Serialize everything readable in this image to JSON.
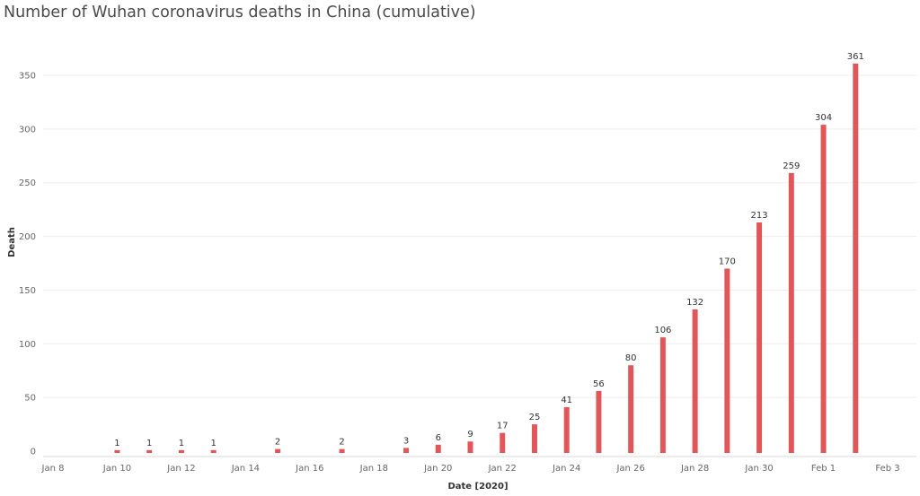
{
  "chart_data": {
    "type": "bar",
    "title": "Number of Wuhan coronavirus deaths in China (cumulative)",
    "xlabel": "Date [2020]",
    "ylabel": "Death",
    "bar_color": "#e15759",
    "gridlines": true,
    "ylim": [
      0,
      370
    ],
    "yticks": [
      0,
      50,
      100,
      150,
      200,
      250,
      300,
      350
    ],
    "xtick_labels": [
      "Jan 8",
      "Jan 10",
      "Jan 12",
      "Jan 14",
      "Jan 16",
      "Jan 18",
      "Jan 20",
      "Jan 22",
      "Jan 24",
      "Jan 26",
      "Jan 28",
      "Jan 30",
      "Feb 1",
      "Feb 3"
    ],
    "x_range": [
      "2020-01-08",
      "2020-02-03"
    ],
    "points": [
      {
        "date": "2020-01-10",
        "value": 1
      },
      {
        "date": "2020-01-11",
        "value": 1
      },
      {
        "date": "2020-01-12",
        "value": 1
      },
      {
        "date": "2020-01-13",
        "value": 1
      },
      {
        "date": "2020-01-15",
        "value": 2
      },
      {
        "date": "2020-01-17",
        "value": 2
      },
      {
        "date": "2020-01-19",
        "value": 3
      },
      {
        "date": "2020-01-20",
        "value": 6
      },
      {
        "date": "2020-01-21",
        "value": 9
      },
      {
        "date": "2020-01-22",
        "value": 17
      },
      {
        "date": "2020-01-23",
        "value": 25
      },
      {
        "date": "2020-01-24",
        "value": 41
      },
      {
        "date": "2020-01-25",
        "value": 56
      },
      {
        "date": "2020-01-26",
        "value": 80
      },
      {
        "date": "2020-01-27",
        "value": 106
      },
      {
        "date": "2020-01-28",
        "value": 132
      },
      {
        "date": "2020-01-29",
        "value": 170
      },
      {
        "date": "2020-01-30",
        "value": 213
      },
      {
        "date": "2020-01-31",
        "value": 259
      },
      {
        "date": "2020-02-01",
        "value": 304
      },
      {
        "date": "2020-02-02",
        "value": 361
      }
    ]
  }
}
